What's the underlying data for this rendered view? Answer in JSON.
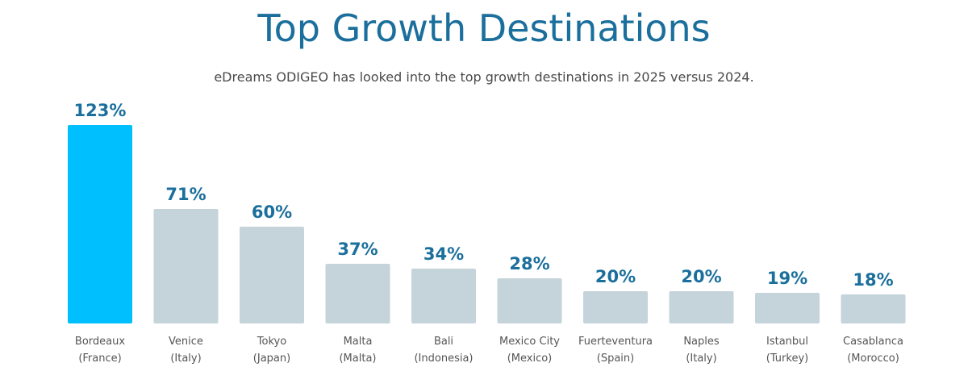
{
  "header": {
    "title": "Top Growth Destinations",
    "subtitle": "eDreams ODIGEO has looked into the top growth destinations in 2025 versus 2024."
  },
  "colors": {
    "highlight": "#00bfff",
    "bar": "#c5d3da",
    "value_text": "#1b6f9c",
    "title": "#1b6f9c"
  },
  "chart_data": {
    "type": "bar",
    "title": "Top Growth Destinations",
    "subtitle": "eDreams ODIGEO has looked into the top growth destinations in 2025 versus 2024.",
    "xlabel": "",
    "ylabel": "",
    "grid": false,
    "ylim": [
      0,
      123
    ],
    "categories": [
      [
        "Bordeaux",
        "(France)"
      ],
      [
        "Venice",
        "(Italy)"
      ],
      [
        "Tokyo",
        "(Japan)"
      ],
      [
        "Malta",
        "(Malta)"
      ],
      [
        "Bali",
        "(Indonesia)"
      ],
      [
        "Mexico City",
        "(Mexico)"
      ],
      [
        "Fuerteventura",
        "(Spain)"
      ],
      [
        "Naples",
        "(Italy)"
      ],
      [
        "Istanbul",
        "(Turkey)"
      ],
      [
        "Casablanca",
        "(Morocco)"
      ]
    ],
    "values": [
      123,
      71,
      60,
      37,
      34,
      28,
      20,
      20,
      19,
      18
    ],
    "value_labels": [
      "123%",
      "71%",
      "60%",
      "37%",
      "34%",
      "28%",
      "20%",
      "20%",
      "19%",
      "18%"
    ],
    "highlight_index": 0
  }
}
